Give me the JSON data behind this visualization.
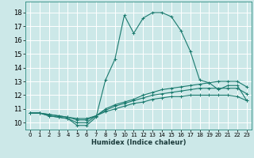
{
  "title": "",
  "xlabel": "Humidex (Indice chaleur)",
  "ylabel": "",
  "background_color": "#cce8e8",
  "grid_color": "#ffffff",
  "line_color": "#1a7a6e",
  "xlim": [
    -0.5,
    23.5
  ],
  "ylim": [
    9.5,
    18.8
  ],
  "xticks": [
    0,
    1,
    2,
    3,
    4,
    5,
    6,
    7,
    8,
    9,
    10,
    11,
    12,
    13,
    14,
    15,
    16,
    17,
    18,
    19,
    20,
    21,
    22,
    23
  ],
  "yticks": [
    10,
    11,
    12,
    13,
    14,
    15,
    16,
    17,
    18
  ],
  "series": [
    {
      "x": [
        0,
        1,
        2,
        3,
        4,
        5,
        6,
        7,
        8,
        9,
        10,
        11,
        12,
        13,
        14,
        15,
        16,
        17,
        18,
        19,
        20,
        21,
        22,
        23
      ],
      "y": [
        10.7,
        10.7,
        10.5,
        10.4,
        10.3,
        9.8,
        9.8,
        10.4,
        13.1,
        14.6,
        17.8,
        16.5,
        17.6,
        18.0,
        18.0,
        17.7,
        16.7,
        15.2,
        13.1,
        12.9,
        12.4,
        12.7,
        12.7,
        11.6
      ]
    },
    {
      "x": [
        0,
        1,
        2,
        3,
        4,
        5,
        6,
        7,
        8,
        9,
        10,
        11,
        12,
        13,
        14,
        15,
        16,
        17,
        18,
        19,
        20,
        21,
        22,
        23
      ],
      "y": [
        10.7,
        10.7,
        10.5,
        10.4,
        10.3,
        10.0,
        10.0,
        10.5,
        11.0,
        11.3,
        11.5,
        11.7,
        12.0,
        12.2,
        12.4,
        12.5,
        12.6,
        12.7,
        12.8,
        12.9,
        13.0,
        13.0,
        13.0,
        12.6
      ]
    },
    {
      "x": [
        0,
        1,
        2,
        3,
        4,
        5,
        6,
        7,
        8,
        9,
        10,
        11,
        12,
        13,
        14,
        15,
        16,
        17,
        18,
        19,
        20,
        21,
        22,
        23
      ],
      "y": [
        10.7,
        10.7,
        10.6,
        10.5,
        10.4,
        10.2,
        10.2,
        10.5,
        10.9,
        11.2,
        11.4,
        11.6,
        11.8,
        12.0,
        12.1,
        12.2,
        12.3,
        12.4,
        12.5,
        12.5,
        12.5,
        12.5,
        12.5,
        12.1
      ]
    },
    {
      "x": [
        0,
        1,
        2,
        3,
        4,
        5,
        6,
        7,
        8,
        9,
        10,
        11,
        12,
        13,
        14,
        15,
        16,
        17,
        18,
        19,
        20,
        21,
        22,
        23
      ],
      "y": [
        10.7,
        10.7,
        10.6,
        10.5,
        10.4,
        10.3,
        10.3,
        10.5,
        10.8,
        11.0,
        11.2,
        11.4,
        11.5,
        11.7,
        11.8,
        11.9,
        11.9,
        12.0,
        12.0,
        12.0,
        12.0,
        12.0,
        11.9,
        11.6
      ]
    }
  ]
}
